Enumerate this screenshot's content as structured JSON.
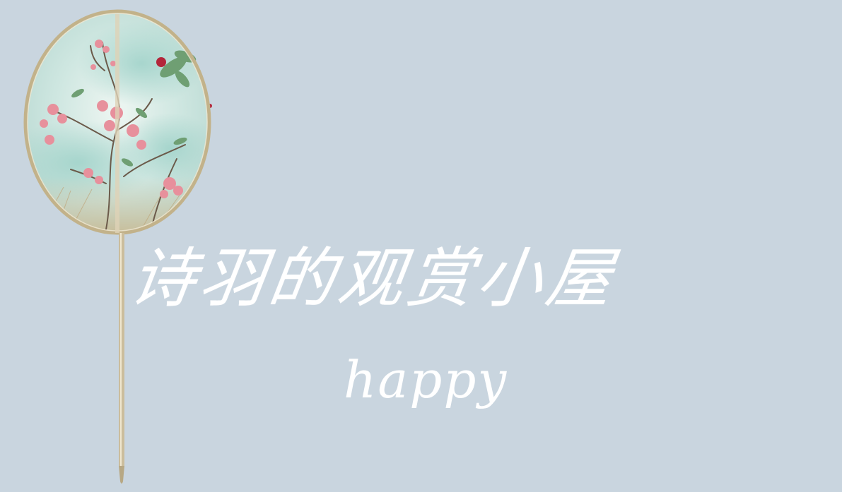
{
  "title": "诗羽的观赏小屋",
  "subtitle": "happy",
  "colors": {
    "background": "#c9d5df",
    "text": "#ffffff",
    "fan_frame": "#c2b28a",
    "blossom": "#e7909c",
    "leaf": "#6f9f73",
    "berry": "#b3263a",
    "mist": "#a8d6cf"
  },
  "icons": {
    "fan": "round-fan-icon",
    "blossom": "plum-blossom-icon"
  }
}
